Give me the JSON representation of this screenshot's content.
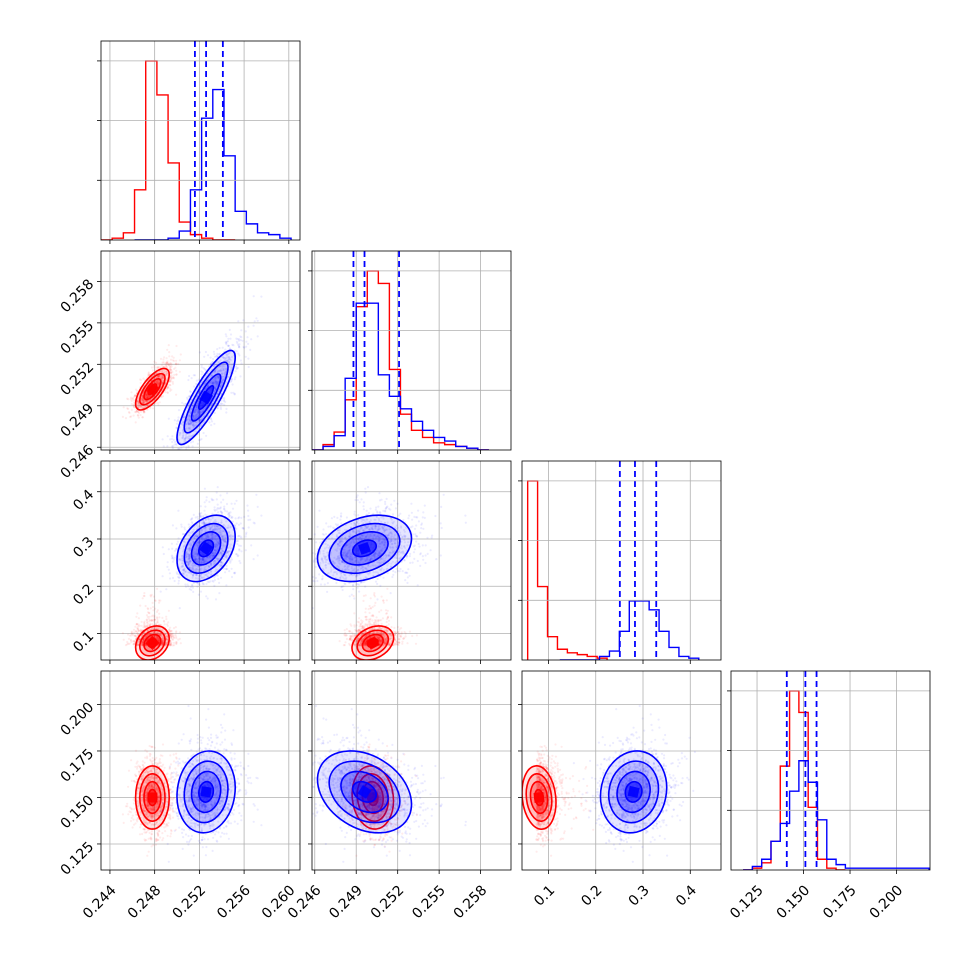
{
  "chart_data": {
    "type": "corner",
    "grid": true,
    "colors": {
      "red": "#ff0000",
      "blue": "#0000ff"
    },
    "parameters": [
      {
        "ticks": [
          0.244,
          0.248,
          0.252,
          0.256,
          0.26
        ],
        "tick_labels": [
          "0.244",
          "0.248",
          "0.252",
          "0.256",
          "0.260"
        ],
        "range": [
          0.2432,
          0.261
        ]
      },
      {
        "ticks": [
          0.246,
          0.249,
          0.252,
          0.255,
          0.258
        ],
        "tick_labels": [
          "0.246",
          "0.249",
          "0.252",
          "0.255",
          "0.258"
        ],
        "range": [
          0.2458,
          0.2602
        ]
      },
      {
        "ticks": [
          0.1,
          0.2,
          0.3,
          0.4
        ],
        "tick_labels": [
          "0.1",
          "0.2",
          "0.3",
          "0.4"
        ],
        "range": [
          0.044,
          0.465
        ]
      },
      {
        "ticks": [
          0.125,
          0.15,
          0.175,
          0.2
        ],
        "tick_labels": [
          "0.125",
          "0.150",
          "0.175",
          "0.200"
        ],
        "range": [
          0.111,
          0.218
        ]
      }
    ],
    "series": [
      {
        "color": "#ff0000",
        "means": [
          0.2478,
          0.2502,
          0.08,
          0.15
        ],
        "sigmas": [
          0.00075,
          0.00075,
          0.018,
          0.0085
        ],
        "correlations": [
          [
            0,
            1,
            0.7
          ],
          [
            0,
            2,
            0.25
          ],
          [
            1,
            2,
            0.3
          ],
          [
            2,
            3,
            -0.15
          ],
          [
            1,
            3,
            -0.1
          ]
        ],
        "histograms": [
          {
            "edges": [
              0.2432,
              0.2442,
              0.2452,
              0.2462,
              0.2472,
              0.2482,
              0.2492,
              0.2502,
              0.2512,
              0.2522,
              0.2532,
              0.2542,
              0.2552
            ],
            "counts": [
              0,
              1,
              4,
              28,
              100,
              81,
              43,
              10,
              3,
              1,
              0,
              0
            ]
          },
          {
            "edges": [
              0.2458,
              0.2466,
              0.2474,
              0.2482,
              0.249,
              0.2498,
              0.2506,
              0.2514,
              0.2522,
              0.253,
              0.2538,
              0.2546,
              0.2554,
              0.2562,
              0.257,
              0.2578,
              0.2586
            ],
            "counts": [
              0,
              3,
              10,
              28,
              80,
              100,
              93,
              45,
              20,
              11,
              7,
              4,
              3,
              2,
              1,
              0
            ]
          },
          {
            "edges": [
              0.056,
              0.077,
              0.098,
              0.119,
              0.14,
              0.161,
              0.182,
              0.203,
              0.224
            ],
            "counts": [
              100,
              41,
              13,
              6,
              4,
              3,
              2,
              1
            ]
          },
          {
            "edges": [
              0.1175,
              0.1225,
              0.1275,
              0.1325,
              0.1375,
              0.1425,
              0.1475,
              0.1525,
              0.1575,
              0.1625,
              0.1675,
              0.1725
            ],
            "counts": [
              0,
              1,
              4,
              16,
              58,
              100,
              88,
              35,
              6,
              1,
              0
            ]
          }
        ]
      },
      {
        "color": "#0000ff",
        "means": [
          0.2526,
          0.2496,
          0.28,
          0.153
        ],
        "sigmas": [
          0.0013,
          0.0017,
          0.035,
          0.011
        ],
        "correlations": [
          [
            0,
            1,
            0.85
          ],
          [
            0,
            2,
            0.35
          ],
          [
            1,
            2,
            0.3
          ],
          [
            2,
            3,
            0.1
          ],
          [
            0,
            3,
            0.1
          ],
          [
            1,
            3,
            -0.3
          ]
        ],
        "quantiles": [
          [
            0.2516,
            0.2526,
            0.2541
          ],
          [
            0.2488,
            0.2496,
            0.2521
          ],
          [
            0.251,
            0.283,
            0.328
          ],
          [
            0.141,
            0.151,
            0.157
          ]
        ],
        "histograms": [
          {
            "edges": [
              0.2462,
              0.2472,
              0.2482,
              0.2492,
              0.2502,
              0.2512,
              0.2522,
              0.2532,
              0.2542,
              0.2552,
              0.2562,
              0.2572,
              0.2582,
              0.2592,
              0.2602
            ],
            "counts": [
              0,
              0,
              0,
              1,
              5,
              28,
              68,
              84,
              47,
              16,
              9,
              4,
              3,
              1
            ]
          },
          {
            "edges": [
              0.2458,
              0.2466,
              0.2474,
              0.2482,
              0.249,
              0.2498,
              0.2506,
              0.2514,
              0.2522,
              0.253,
              0.2538,
              0.2546,
              0.2554,
              0.2562,
              0.257,
              0.2578,
              0.2586
            ],
            "counts": [
              0,
              2,
              8,
              40,
              82,
              82,
              42,
              30,
              23,
              16,
              11,
              7,
              5,
              2,
              1,
              0
            ]
          },
          {
            "edges": [
              0.124,
              0.145,
              0.166,
              0.187,
              0.208,
              0.229,
              0.25,
              0.271,
              0.292,
              0.313,
              0.334,
              0.355,
              0.376,
              0.397,
              0.418
            ],
            "counts": [
              0,
              0,
              0,
              0,
              2,
              5,
              16,
              33,
              33,
              28,
              16,
              7,
              2,
              1
            ]
          },
          {
            "edges": [
              0.1175,
              0.1225,
              0.1275,
              0.1325,
              0.1375,
              0.1425,
              0.1475,
              0.1525,
              0.1575,
              0.1625,
              0.1675,
              0.1725,
              0.1775,
              0.1825,
              0.2175
            ],
            "counts": [
              0,
              2,
              6,
              16,
              26,
              44,
              61,
              49,
              28,
              6,
              3,
              1,
              1,
              1
            ]
          }
        ]
      }
    ]
  }
}
